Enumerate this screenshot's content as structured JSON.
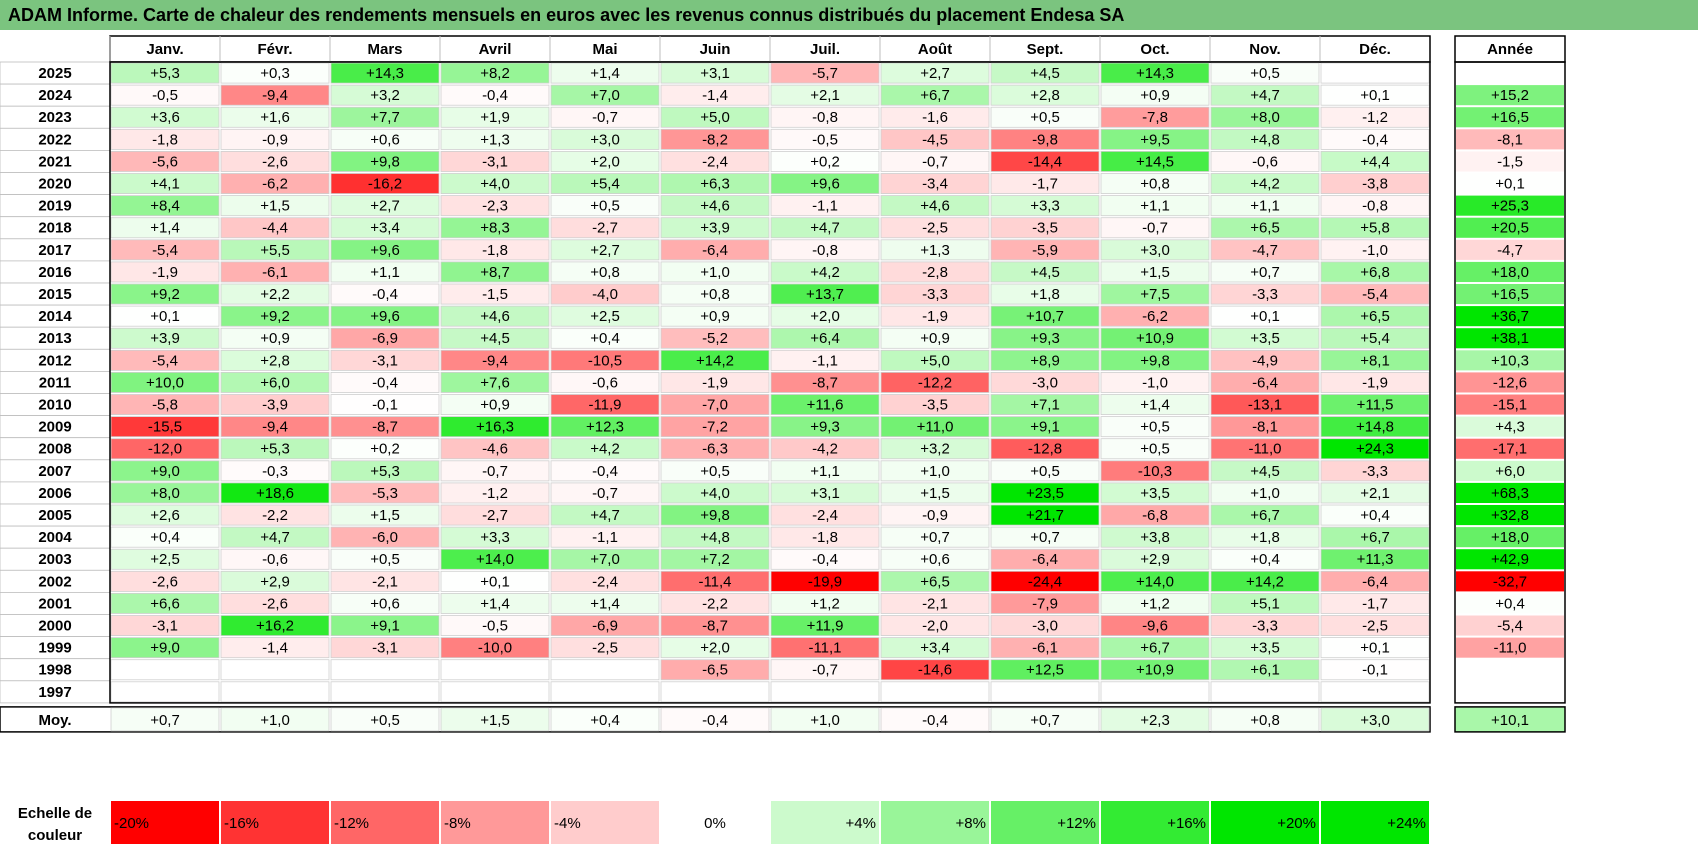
{
  "title": "ADAM Informe. Carte de chaleur des rendements mensuels en euros avec les revenus connus distribués du placement Endesa SA",
  "chart_data": {
    "type": "heatmap",
    "columns": [
      "Janv.",
      "Févr.",
      "Mars",
      "Avril",
      "Mai",
      "Juin",
      "Juil.",
      "Août",
      "Sept.",
      "Oct.",
      "Nov.",
      "Déc."
    ],
    "annual_header": "Année",
    "avg_label": "Moy.",
    "rows": [
      {
        "year": "2025",
        "values": [
          5.3,
          0.3,
          14.3,
          8.2,
          1.4,
          3.1,
          -5.7,
          2.7,
          4.5,
          14.3,
          0.5,
          null
        ],
        "annual": null
      },
      {
        "year": "2024",
        "values": [
          -0.5,
          -9.4,
          3.2,
          -0.4,
          7.0,
          -1.4,
          2.1,
          6.7,
          2.8,
          0.9,
          4.7,
          0.1
        ],
        "annual": 15.2
      },
      {
        "year": "2023",
        "values": [
          3.6,
          1.6,
          7.7,
          1.9,
          -0.7,
          5.0,
          -0.8,
          -1.6,
          0.5,
          -7.8,
          8.0,
          -1.2
        ],
        "annual": 16.5
      },
      {
        "year": "2022",
        "values": [
          -1.8,
          -0.9,
          0.6,
          1.3,
          3.0,
          -8.2,
          -0.5,
          -4.5,
          -9.8,
          9.5,
          4.8,
          -0.4
        ],
        "annual": -8.1
      },
      {
        "year": "2021",
        "values": [
          -5.6,
          -2.6,
          9.8,
          -3.1,
          2.0,
          -2.4,
          0.2,
          -0.7,
          -14.4,
          14.5,
          -0.6,
          4.4
        ],
        "annual": -1.5
      },
      {
        "year": "2020",
        "values": [
          4.1,
          -6.2,
          -16.2,
          4.0,
          5.4,
          6.3,
          9.6,
          -3.4,
          -1.7,
          0.8,
          4.2,
          -3.8
        ],
        "annual": 0.1
      },
      {
        "year": "2019",
        "values": [
          8.4,
          1.5,
          2.7,
          -2.3,
          0.5,
          4.6,
          -1.1,
          4.6,
          3.3,
          1.1,
          1.1,
          -0.8
        ],
        "annual": 25.3
      },
      {
        "year": "2018",
        "values": [
          1.4,
          -4.4,
          3.4,
          8.3,
          -2.7,
          3.9,
          4.7,
          -2.5,
          -3.5,
          -0.7,
          6.5,
          5.8
        ],
        "annual": 20.5
      },
      {
        "year": "2017",
        "values": [
          -5.4,
          5.5,
          9.6,
          -1.8,
          2.7,
          -6.4,
          -0.8,
          1.3,
          -5.9,
          3.0,
          -4.7,
          -1.0
        ],
        "annual": -4.7
      },
      {
        "year": "2016",
        "values": [
          -1.9,
          -6.1,
          1.1,
          8.7,
          0.8,
          1.0,
          4.2,
          -2.8,
          4.5,
          1.5,
          0.7,
          6.8
        ],
        "annual": 18.0
      },
      {
        "year": "2015",
        "values": [
          9.2,
          2.2,
          -0.4,
          -1.5,
          -4.0,
          0.8,
          13.7,
          -3.3,
          1.8,
          7.5,
          -3.3,
          -5.4
        ],
        "annual": 16.5
      },
      {
        "year": "2014",
        "values": [
          0.1,
          9.2,
          9.6,
          4.6,
          2.5,
          0.9,
          2.0,
          -1.9,
          10.7,
          -6.2,
          0.1,
          6.5
        ],
        "annual": 36.7
      },
      {
        "year": "2013",
        "values": [
          3.9,
          0.9,
          -6.9,
          4.5,
          0.4,
          -5.2,
          6.4,
          0.9,
          9.3,
          10.9,
          3.5,
          5.4
        ],
        "annual": 38.1
      },
      {
        "year": "2012",
        "values": [
          -5.4,
          2.8,
          -3.1,
          -9.4,
          -10.5,
          14.2,
          -1.1,
          5.0,
          8.9,
          9.8,
          -4.9,
          8.1
        ],
        "annual": 10.3
      },
      {
        "year": "2011",
        "values": [
          10.0,
          6.0,
          -0.4,
          7.6,
          -0.6,
          -1.9,
          -8.7,
          -12.2,
          -3.0,
          -1.0,
          -6.4,
          -1.9
        ],
        "annual": -12.6
      },
      {
        "year": "2010",
        "values": [
          -5.8,
          -3.9,
          -0.1,
          0.9,
          -11.9,
          -7.0,
          11.6,
          -3.5,
          7.1,
          1.4,
          -13.1,
          11.5
        ],
        "annual": -15.1
      },
      {
        "year": "2009",
        "values": [
          -15.5,
          -9.4,
          -8.7,
          16.3,
          12.3,
          -7.2,
          9.3,
          11.0,
          9.1,
          0.5,
          -8.1,
          14.8
        ],
        "annual": 4.3
      },
      {
        "year": "2008",
        "values": [
          -12.0,
          5.3,
          0.2,
          -4.6,
          4.2,
          -6.3,
          -4.2,
          3.2,
          -12.8,
          0.5,
          -11.0,
          24.3
        ],
        "annual": -17.1
      },
      {
        "year": "2007",
        "values": [
          9.0,
          -0.3,
          5.3,
          -0.7,
          -0.4,
          0.5,
          1.1,
          1.0,
          0.5,
          -10.3,
          4.5,
          -3.3
        ],
        "annual": 6.0
      },
      {
        "year": "2006",
        "values": [
          8.0,
          18.6,
          -5.3,
          -1.2,
          -0.7,
          4.0,
          3.1,
          1.5,
          23.5,
          3.5,
          1.0,
          2.1
        ],
        "annual": 68.3
      },
      {
        "year": "2005",
        "values": [
          2.6,
          -2.2,
          1.5,
          -2.7,
          4.7,
          9.8,
          -2.4,
          -0.9,
          21.7,
          -6.8,
          6.7,
          0.4
        ],
        "annual": 32.8
      },
      {
        "year": "2004",
        "values": [
          0.4,
          4.7,
          -6.0,
          3.3,
          -1.1,
          4.8,
          -1.8,
          0.7,
          0.7,
          3.8,
          1.8,
          6.7
        ],
        "annual": 18.0
      },
      {
        "year": "2003",
        "values": [
          2.5,
          -0.6,
          0.5,
          14.0,
          7.0,
          7.2,
          -0.4,
          0.6,
          -6.4,
          2.9,
          0.4,
          11.3
        ],
        "annual": 42.9
      },
      {
        "year": "2002",
        "values": [
          -2.6,
          2.9,
          -2.1,
          0.1,
          -2.4,
          -11.4,
          -19.9,
          6.5,
          -24.4,
          14.0,
          14.2,
          -6.4
        ],
        "annual": -32.7
      },
      {
        "year": "2001",
        "values": [
          6.6,
          -2.6,
          0.6,
          1.4,
          1.4,
          -2.2,
          1.2,
          -2.1,
          -7.9,
          1.2,
          5.1,
          -1.7
        ],
        "annual": 0.4
      },
      {
        "year": "2000",
        "values": [
          -3.1,
          16.2,
          9.1,
          -0.5,
          -6.9,
          -8.7,
          11.9,
          -2.0,
          -3.0,
          -9.6,
          -3.3,
          -2.5
        ],
        "annual": -5.4
      },
      {
        "year": "1999",
        "values": [
          9.0,
          -1.4,
          -3.1,
          -10.0,
          -2.5,
          2.0,
          -11.1,
          3.4,
          -6.1,
          6.7,
          3.5,
          0.1
        ],
        "annual": -11.0
      },
      {
        "year": "1998",
        "values": [
          null,
          null,
          null,
          null,
          null,
          -6.5,
          -0.7,
          -14.6,
          12.5,
          10.9,
          6.1,
          -0.1
        ],
        "annual": null
      },
      {
        "year": "1997",
        "values": [
          null,
          null,
          null,
          null,
          null,
          null,
          null,
          null,
          null,
          null,
          null,
          null
        ],
        "annual": null
      }
    ],
    "averages": {
      "values": [
        0.7,
        1.0,
        0.5,
        1.5,
        0.4,
        -0.4,
        1.0,
        -0.4,
        0.7,
        2.3,
        0.8,
        3.0
      ],
      "annual": 10.1
    },
    "scale": {
      "label_line1": "Echelle de",
      "label_line2": "couleur",
      "stops": [
        {
          "label": "-20%",
          "value": -20
        },
        {
          "label": "-16%",
          "value": -16
        },
        {
          "label": "-12%",
          "value": -12
        },
        {
          "label": "-8%",
          "value": -8
        },
        {
          "label": "-4%",
          "value": -4
        },
        {
          "label": "0%",
          "value": 0
        },
        {
          "label": "+4%",
          "value": 4
        },
        {
          "label": "+8%",
          "value": 8
        },
        {
          "label": "+12%",
          "value": 12
        },
        {
          "label": "+16%",
          "value": 16
        },
        {
          "label": "+20%",
          "value": 20
        },
        {
          "label": "+24%",
          "value": 24
        }
      ]
    },
    "colors": {
      "negative": "#ff0000",
      "neutral": "#ffffff",
      "positive": "#00e600",
      "header_bg": "#7bc47f"
    }
  }
}
